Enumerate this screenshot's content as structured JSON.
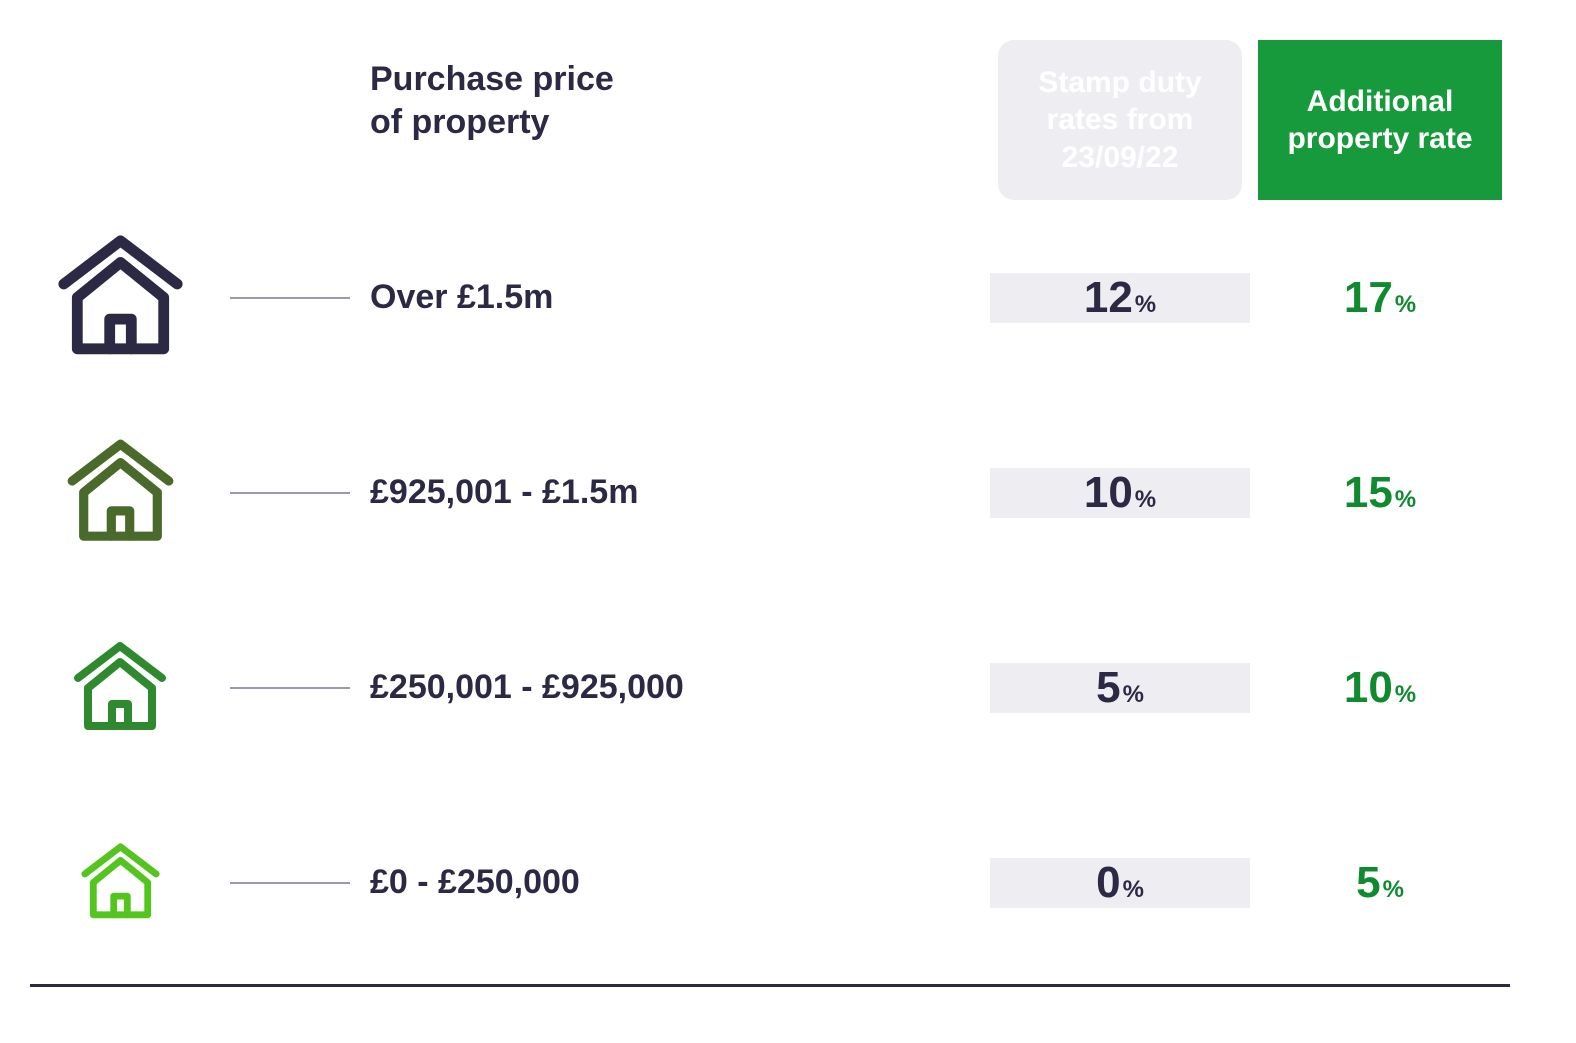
{
  "colors": {
    "text": "#2c2945",
    "column_bg": "#eeeef2",
    "dash": "#9b9aab",
    "green_header": "#179a3b",
    "green_text": "#0f8a2f",
    "icon_colors": [
      "#2c2945",
      "#4a6a2b",
      "#2f8a2f",
      "#54c41f"
    ],
    "icon_scales": [
      1.35,
      1.15,
      1.0,
      0.85
    ]
  },
  "headers": {
    "price": "Purchase price\nof property",
    "stamp": "Stamp duty rates from 23/09/22",
    "additional": "Additional property rate"
  },
  "rows": [
    {
      "label": "Over £1.5m",
      "stamp_pct": "12",
      "additional_pct": "17"
    },
    {
      "label": "£925,001 - £1.5m",
      "stamp_pct": "10",
      "additional_pct": "15"
    },
    {
      "label": "£250,001 - £925,000",
      "stamp_pct": "5",
      "additional_pct": "10"
    },
    {
      "label": "£0 - £250,000",
      "stamp_pct": "0",
      "additional_pct": "5"
    }
  ],
  "pct_unit": "%"
}
